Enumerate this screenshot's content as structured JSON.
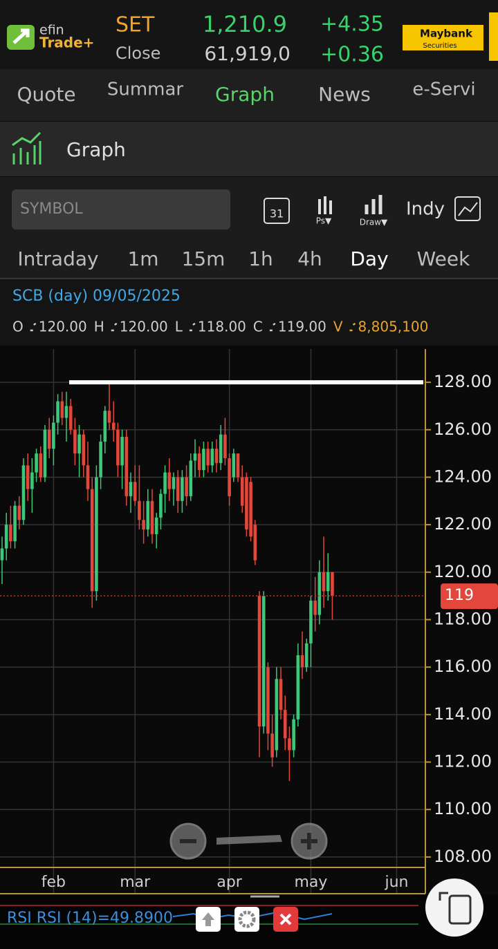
{
  "header": {
    "logo_top": "efin",
    "logo_bottom": "Trade+",
    "index": "SET",
    "session": "Close",
    "last": "1,210.9",
    "volume": "61,919,0",
    "change": "+4.35",
    "change_pct": "+0.36",
    "broker": "Maybank",
    "broker_sub": "Securities"
  },
  "tabs": [
    "Quote",
    "Summar",
    "Graph",
    "News",
    "e-Servi"
  ],
  "section": {
    "title": "Graph"
  },
  "toolbar": {
    "symbol_placeholder": "SYMBOL",
    "calendar_day": "31",
    "ps": "Ps▼",
    "draw": "Draw▼",
    "indy": "Indy"
  },
  "intervals": [
    "Intraday",
    "1m",
    "15m",
    "1h",
    "4h",
    "Day",
    "Week"
  ],
  "info": {
    "title": "SCB (day) 09/05/2025",
    "ohlc": [
      {
        "label": "O",
        "value": "120.00"
      },
      {
        "label": "H",
        "value": "120.00"
      },
      {
        "label": "L",
        "value": "118.00"
      },
      {
        "label": "C",
        "value": "119.00"
      },
      {
        "label": "V",
        "value": "8,805,100"
      }
    ]
  },
  "chart_data": {
    "type": "candlestick",
    "open": [
      120.5,
      121,
      122,
      121.3,
      122.8,
      122.2,
      124.5,
      123.5,
      124.2,
      125,
      124,
      126,
      125.2,
      126.3,
      127.2,
      126.5,
      127,
      126,
      125,
      125.8,
      124.5,
      123.5,
      119.2,
      124,
      125.5,
      126.8,
      126.3,
      126,
      124.5,
      125.7,
      123.2,
      123.8,
      123,
      122.2,
      121.8,
      123,
      121.6,
      122.3,
      123.3,
      124.2,
      123.5,
      124,
      123,
      124,
      123.2,
      124.7,
      125,
      124.3,
      125.2,
      124.5,
      125.2,
      124.6,
      125.8,
      124.8,
      124,
      125,
      124,
      124,
      123.8,
      122,
      119,
      113.5,
      116,
      113.2,
      112.5,
      115.5,
      114.2,
      113,
      112.5,
      113.8,
      116.5,
      116,
      117,
      118.8,
      118.2,
      120,
      119.2,
      120
    ],
    "high": [
      121.5,
      122.5,
      122.8,
      123,
      123.2,
      124.8,
      125,
      124.8,
      125.2,
      125.3,
      126.2,
      126.5,
      126.6,
      127.5,
      127.6,
      127.6,
      127.3,
      126.5,
      126.2,
      126,
      125.5,
      124,
      124.5,
      125.8,
      127,
      128,
      127.2,
      126.3,
      126,
      126,
      124.2,
      124.5,
      124.5,
      123,
      123.5,
      123.5,
      122.5,
      123.5,
      124.5,
      124.8,
      124.2,
      124.3,
      124.3,
      124.5,
      125,
      125.6,
      125.3,
      125.5,
      125.5,
      125.5,
      125.6,
      126.2,
      126.5,
      125,
      125.2,
      125,
      124.5,
      124.2,
      124,
      122.2,
      119.2,
      119.2,
      116.2,
      114,
      116,
      116,
      114.8,
      113.5,
      114,
      117,
      117.5,
      117.2,
      119,
      119.8,
      120.5,
      121.5,
      120.8,
      120
    ],
    "low": [
      119.5,
      120.5,
      121,
      121,
      121.8,
      122,
      123,
      122.5,
      123.8,
      123.8,
      123.8,
      124.8,
      124.5,
      125.8,
      126.2,
      125.5,
      125.8,
      124.5,
      124,
      124,
      123,
      118.5,
      118.8,
      123.5,
      125,
      126,
      125.5,
      124,
      123.5,
      122.8,
      122.5,
      122.8,
      121.8,
      121.2,
      121.5,
      121.2,
      121,
      121.8,
      122.5,
      123,
      122.8,
      122.5,
      122.5,
      122.8,
      123,
      124,
      124,
      124,
      124.2,
      124.2,
      124.2,
      124.3,
      124.5,
      122.8,
      123.8,
      123.8,
      122.5,
      121.5,
      121.3,
      120.3,
      112.2,
      113.2,
      112.5,
      111.8,
      112.2,
      113.8,
      112.5,
      111.2,
      112.2,
      113.5,
      115.5,
      115.8,
      116,
      117.5,
      117.8,
      118.5,
      118.8,
      118
    ],
    "close": [
      121,
      122,
      121.3,
      122.8,
      122.2,
      124.5,
      123.5,
      124.2,
      125,
      124,
      126,
      125.2,
      126.3,
      127.2,
      126.5,
      127,
      126,
      125,
      125.8,
      124.5,
      123.5,
      119.2,
      124,
      125.5,
      126.8,
      126.3,
      126,
      124.5,
      125.7,
      123.2,
      123.8,
      123,
      122.2,
      121.8,
      123,
      121.6,
      122.3,
      123.3,
      124.2,
      123.5,
      124,
      123,
      124,
      123.2,
      124.7,
      125,
      124.3,
      125.2,
      124.5,
      125.2,
      124.6,
      125.8,
      124.8,
      123.2,
      125,
      124,
      122.8,
      121.8,
      121.5,
      120.5,
      113.5,
      119,
      113.2,
      112.2,
      115.5,
      114.2,
      113,
      112.5,
      113.8,
      116.5,
      116,
      117,
      118.8,
      118.2,
      120,
      119.2,
      120,
      119
    ],
    "up_color": "#3cc878",
    "down_color": "#e2473c",
    "xlim": [
      -0.48,
      98.7
    ],
    "xticks": [
      {
        "value": 12,
        "label": "feb"
      },
      {
        "value": 31,
        "label": "mar"
      },
      {
        "value": 53,
        "label": "apr"
      },
      {
        "value": 72,
        "label": "may"
      },
      {
        "value": 92,
        "label": "jun"
      }
    ],
    "ylim": [
      107.56,
      129.4
    ],
    "yticks": [
      {
        "value": 108,
        "label": "108.00"
      },
      {
        "value": 110,
        "label": "110.00"
      },
      {
        "value": 112,
        "label": "112.00"
      },
      {
        "value": 114,
        "label": "114.00"
      },
      {
        "value": 116,
        "label": "116.00"
      },
      {
        "value": 118,
        "label": "118.00"
      },
      {
        "value": 120,
        "label": "120.00"
      },
      {
        "value": 122,
        "label": "122.00"
      },
      {
        "value": 124,
        "label": "124.00"
      },
      {
        "value": 126,
        "label": "126.00"
      },
      {
        "value": 128,
        "label": "128.00"
      }
    ],
    "grid": true,
    "last_price": 119,
    "trendline": 128,
    "rsi_label": "RSI RSI (14)=49.8900"
  }
}
